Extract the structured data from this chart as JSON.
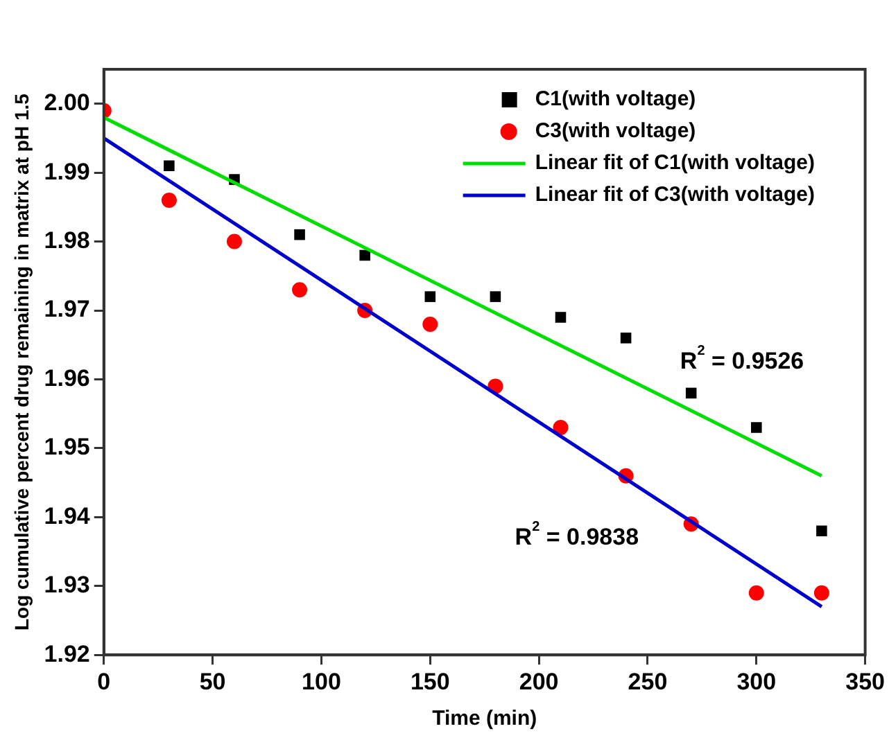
{
  "chart_data": {
    "type": "scatter",
    "xlabel": "Time (min)",
    "ylabel": "Log cumulative percent drug remaining in matrix at pH 1.5",
    "xlim": [
      0,
      350
    ],
    "xticks": [
      0,
      50,
      100,
      150,
      200,
      250,
      300,
      350
    ],
    "ylim": [
      1.92,
      2.005
    ],
    "yticks": [
      1.92,
      1.93,
      1.94,
      1.95,
      1.96,
      1.97,
      1.98,
      1.99,
      {
        "value": 2.0,
        "label": "2.00"
      }
    ],
    "grid": false,
    "legend": "top right",
    "series": [
      {
        "name": "C1(with voltage)",
        "marker": "square",
        "color": "#000000",
        "x": [
          30,
          60,
          90,
          120,
          150,
          180,
          210,
          240,
          270,
          300,
          330
        ],
        "values": [
          1.991,
          1.989,
          1.981,
          1.978,
          1.972,
          1.972,
          1.969,
          1.966,
          1.958,
          1.953,
          1.938
        ]
      },
      {
        "name": "C3(with voltage)",
        "marker": "circle",
        "color": "#ff0000",
        "x": [
          0,
          30,
          60,
          90,
          120,
          150,
          180,
          210,
          240,
          270,
          300,
          330
        ],
        "values": [
          1.999,
          1.986,
          1.98,
          1.973,
          1.97,
          1.968,
          1.959,
          1.953,
          1.946,
          1.939,
          1.929,
          1.929
        ]
      },
      {
        "name": "Linear fit of C1(with voltage)",
        "type": "line",
        "marker": "none",
        "color": "#00dd00",
        "x": [
          0,
          330
        ],
        "values": [
          1.998,
          1.946
        ]
      },
      {
        "name": "Linear fit of C3(with voltage)",
        "type": "line",
        "marker": "none",
        "color": "#0000cc",
        "x": [
          0,
          330
        ],
        "values": [
          1.995,
          1.927
        ]
      }
    ],
    "annotations": [
      "R$^{2}$ = 0.9526",
      "R$^{2}$ = 0.9838"
    ]
  }
}
